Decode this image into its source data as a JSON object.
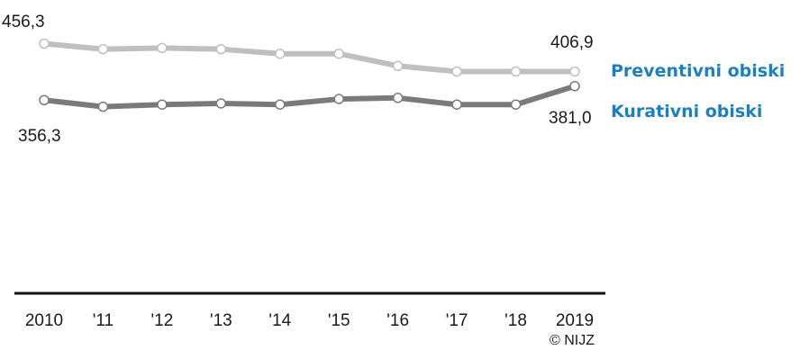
{
  "chart_data": {
    "type": "line",
    "categories": [
      "2010",
      "'11",
      "'12",
      "'13",
      "'14",
      "'15",
      "'16",
      "'17",
      "'18",
      "2019"
    ],
    "series": [
      {
        "name": "Preventivni obiski",
        "color": "#bfbfbf",
        "label_color": "#1b7fc4",
        "values": [
          456.3,
          446.5,
          448.6,
          446.5,
          438.4,
          438.4,
          416.8,
          406.9,
          406.9,
          406.9
        ]
      },
      {
        "name": "Kurativni obiski",
        "color": "#7a7a7a",
        "label_color": "#1b7fc4",
        "values": [
          356.3,
          344.5,
          348.4,
          350.4,
          348.4,
          358.2,
          360.2,
          348.4,
          348.4,
          381.0
        ]
      }
    ],
    "data_labels": {
      "preventive_first": "456,3",
      "preventive_last": "406,9",
      "curative_first": "356,3",
      "curative_last": "381,0"
    },
    "title": "",
    "xlabel": "",
    "ylabel": "",
    "ylim": [
      0,
      500
    ],
    "grid": false,
    "legend": "inline-right"
  },
  "copyright": "© NIJZ"
}
